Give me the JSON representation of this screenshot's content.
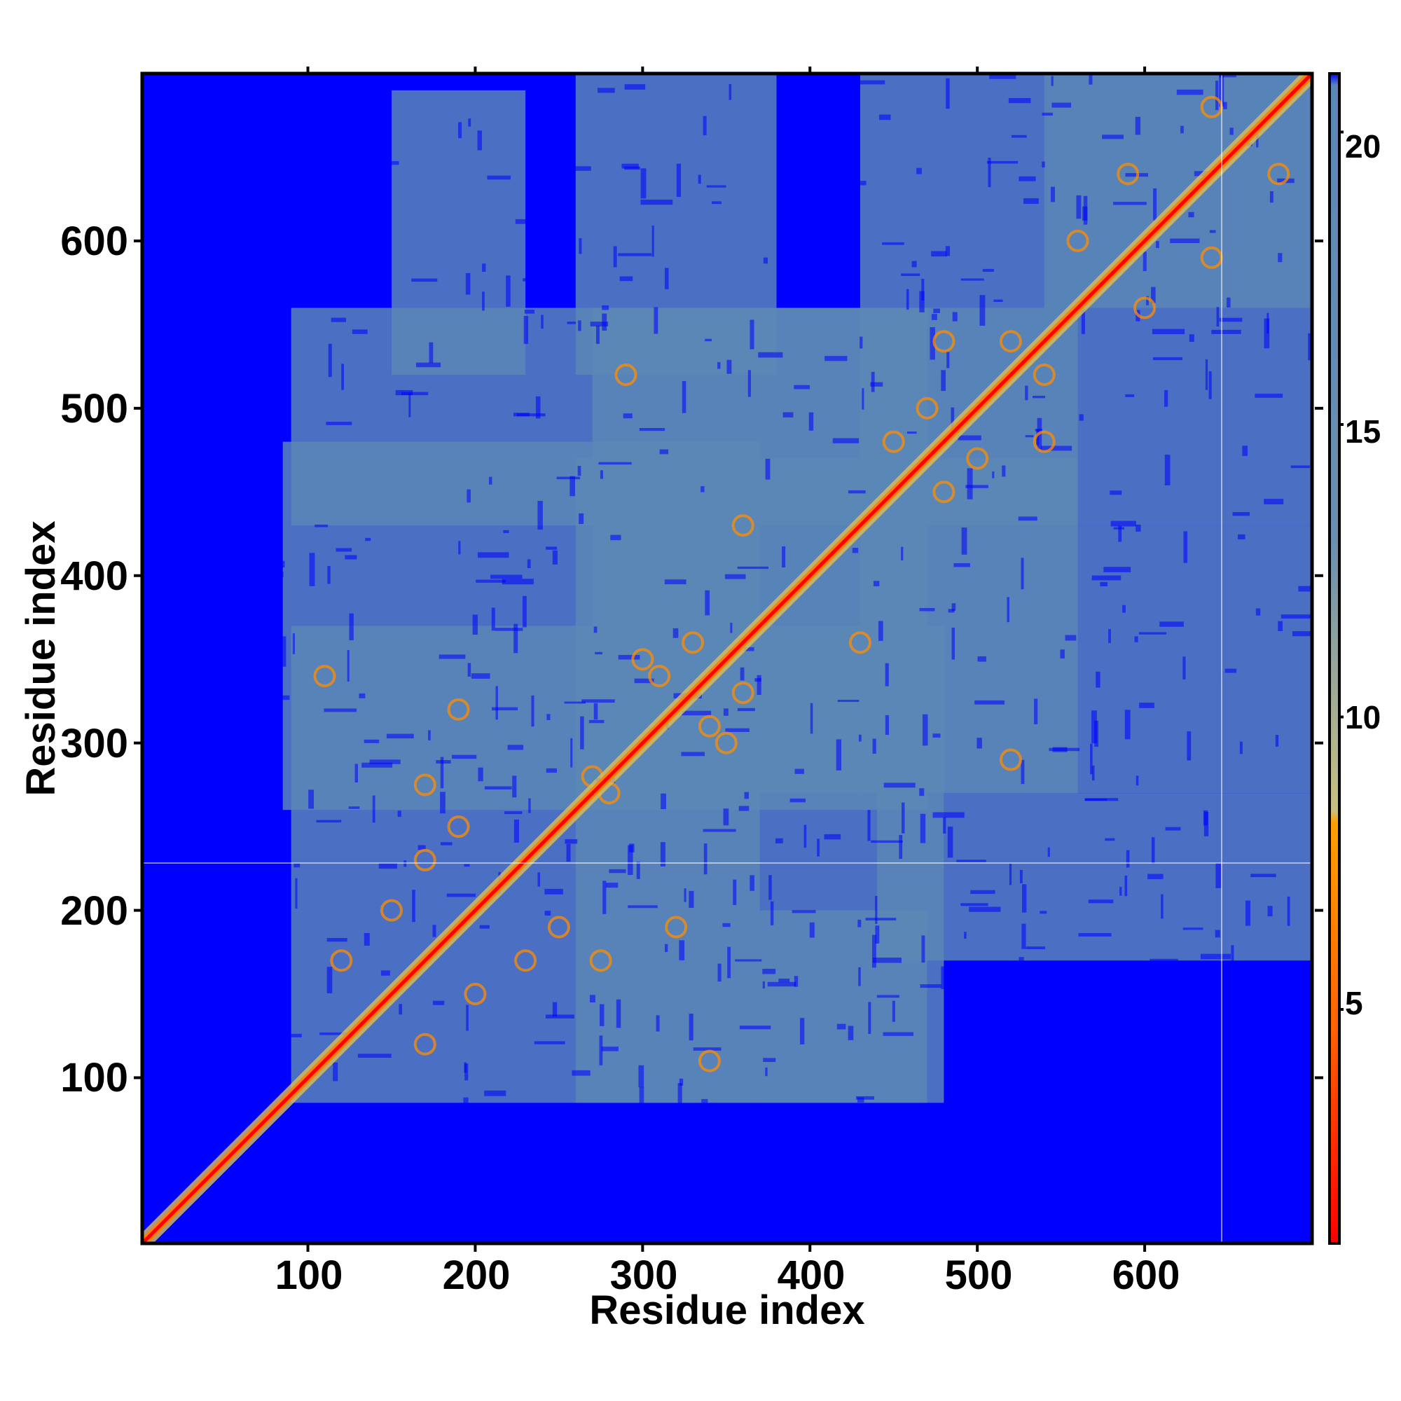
{
  "chart_data": {
    "type": "heatmap",
    "xlabel": "Residue index",
    "ylabel": "Residue index",
    "xlim": [
      1,
      700
    ],
    "ylim": [
      1,
      700
    ],
    "x_ticks": [
      "100",
      "200",
      "300",
      "400",
      "500",
      "600"
    ],
    "y_ticks": [
      "100",
      "200",
      "300",
      "400",
      "500",
      "600"
    ],
    "colorbar": {
      "range": [
        1,
        21
      ],
      "ticks": [
        "5",
        "10",
        "15",
        "20"
      ],
      "colors": [
        "#ff0000",
        "#ff8c00",
        "#b4b48c",
        "#5b87b6",
        "#0000ff"
      ]
    },
    "contact_blocks": [
      {
        "x": [
          90,
          370
        ],
        "y": [
          85,
          370
        ]
      },
      {
        "x": [
          260,
          480
        ],
        "y": [
          85,
          370
        ]
      },
      {
        "x": [
          85,
          370
        ],
        "y": [
          260,
          480
        ]
      },
      {
        "x": [
          260,
          560
        ],
        "y": [
          270,
          470
        ]
      },
      {
        "x": [
          270,
          470
        ],
        "y": [
          260,
          560
        ]
      },
      {
        "x": [
          430,
          700
        ],
        "y": [
          430,
          700
        ]
      },
      {
        "x": [
          430,
          700
        ],
        "y": [
          270,
          430
        ]
      },
      {
        "x": [
          90,
          560
        ],
        "y": [
          430,
          560
        ]
      },
      {
        "x": [
          540,
          700
        ],
        "y": [
          560,
          700
        ]
      },
      {
        "x": [
          440,
          700
        ],
        "y": [
          170,
          270
        ]
      },
      {
        "x": [
          370,
          470
        ],
        "y": [
          85,
          200
        ]
      },
      {
        "x": [
          150,
          230
        ],
        "y": [
          520,
          690
        ]
      },
      {
        "x": [
          260,
          380
        ],
        "y": [
          520,
          700
        ]
      }
    ]
  }
}
